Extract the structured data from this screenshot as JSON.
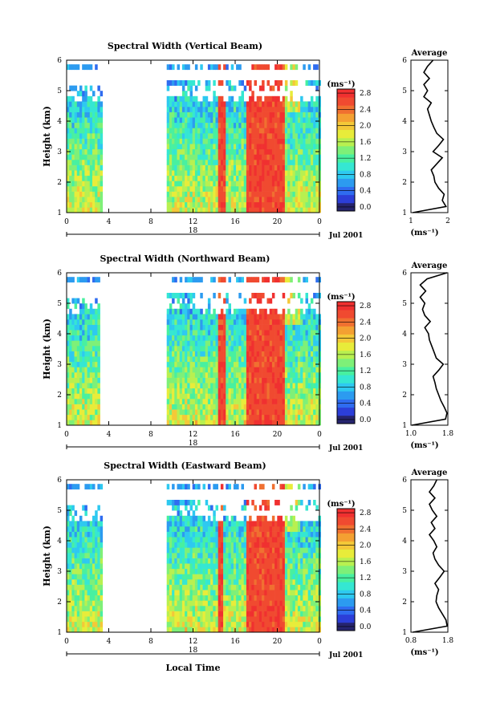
{
  "chart_data": [
    {
      "type": "heatmap",
      "title": "Spectral Width (Vertical Beam)",
      "xlabel": "",
      "ylabel": "Height (km)",
      "xlim": [
        0,
        24
      ],
      "ylim": [
        1,
        6
      ],
      "xticks": [
        "0",
        "4",
        "8",
        "12",
        "16",
        "20",
        "0"
      ],
      "yticks": [
        "1",
        "2",
        "3",
        "4",
        "5",
        "6"
      ],
      "date_tick": "18",
      "date_label": "Jul 2001",
      "colorbar_unit": "(ms⁻¹)",
      "colorbar_ticks": [
        "0.0",
        "0.4",
        "0.8",
        "1.2",
        "1.6",
        "2.0",
        "2.4",
        "2.8"
      ],
      "colorbar_range": [
        0,
        3.0
      ],
      "data_intervals_hours": [
        [
          0,
          3.2
        ],
        [
          9.5,
          24
        ]
      ],
      "high_width_bands_hours": [
        [
          14.2,
          15.0
        ],
        [
          17.0,
          20.5
        ]
      ],
      "average_profile": {
        "title": "Average",
        "xlabel": "(ms⁻¹)",
        "xticks": [
          "1",
          "2"
        ],
        "xlim": [
          1,
          2
        ],
        "yticks": [
          "1",
          "2",
          "3",
          "4",
          "5",
          "6"
        ],
        "heights": [
          1.0,
          1.2,
          1.4,
          1.6,
          1.8,
          2.0,
          2.2,
          2.4,
          2.6,
          2.8,
          3.0,
          3.2,
          3.4,
          3.6,
          3.8,
          4.0,
          4.2,
          4.4,
          4.6,
          4.8,
          5.0,
          5.2,
          5.4,
          5.6,
          5.8,
          6.0
        ],
        "values": [
          1.05,
          1.95,
          1.85,
          1.9,
          1.75,
          1.65,
          1.62,
          1.55,
          1.7,
          1.85,
          1.6,
          1.75,
          1.88,
          1.7,
          1.62,
          1.55,
          1.5,
          1.45,
          1.55,
          1.35,
          1.45,
          1.35,
          1.5,
          1.35,
          1.45,
          1.6
        ]
      }
    },
    {
      "type": "heatmap",
      "title": "Spectral Width (Northward Beam)",
      "xlabel": "",
      "ylabel": "Height (km)",
      "xlim": [
        0,
        24
      ],
      "ylim": [
        1,
        6
      ],
      "xticks": [
        "0",
        "4",
        "8",
        "12",
        "16",
        "20",
        "0"
      ],
      "yticks": [
        "1",
        "2",
        "3",
        "4",
        "5",
        "6"
      ],
      "date_tick": "18",
      "date_label": "Jul 2001",
      "colorbar_unit": "(ms⁻¹)",
      "colorbar_ticks": [
        "0.0",
        "0.4",
        "0.8",
        "1.2",
        "1.6",
        "2.0",
        "2.4",
        "2.8"
      ],
      "colorbar_range": [
        0,
        3.0
      ],
      "data_intervals_hours": [
        [
          0,
          3.0
        ],
        [
          9.5,
          24
        ]
      ],
      "high_width_bands_hours": [
        [
          14.3,
          14.9
        ],
        [
          17.0,
          20.5
        ]
      ],
      "average_profile": {
        "title": "Average",
        "xlabel": "(ms⁻¹)",
        "xticks": [
          "1.0",
          "1.8"
        ],
        "xlim": [
          1.0,
          1.8
        ],
        "yticks": [
          "1",
          "2",
          "3",
          "4",
          "5",
          "6"
        ],
        "heights": [
          1.0,
          1.2,
          1.4,
          1.6,
          1.8,
          2.0,
          2.2,
          2.4,
          2.6,
          2.8,
          3.0,
          3.2,
          3.4,
          3.6,
          3.8,
          4.0,
          4.2,
          4.4,
          4.6,
          4.8,
          5.0,
          5.2,
          5.4,
          5.6,
          5.8,
          6.0
        ],
        "values": [
          1.02,
          1.75,
          1.78,
          1.72,
          1.65,
          1.6,
          1.55,
          1.52,
          1.48,
          1.6,
          1.7,
          1.55,
          1.5,
          1.45,
          1.4,
          1.38,
          1.3,
          1.42,
          1.3,
          1.25,
          1.3,
          1.2,
          1.32,
          1.2,
          1.35,
          1.78
        ]
      }
    },
    {
      "type": "heatmap",
      "title": "Spectral Width (Eastward Beam)",
      "xlabel": "Local Time",
      "ylabel": "Height (km)",
      "xlim": [
        0,
        24
      ],
      "ylim": [
        1,
        6
      ],
      "xticks": [
        "0",
        "4",
        "8",
        "12",
        "16",
        "20",
        "0"
      ],
      "yticks": [
        "1",
        "2",
        "3",
        "4",
        "5",
        "6"
      ],
      "date_tick": "18",
      "date_label": "Jul 2001",
      "colorbar_unit": "(ms⁻¹)",
      "colorbar_ticks": [
        "0.0",
        "0.4",
        "0.8",
        "1.2",
        "1.6",
        "2.0",
        "2.4",
        "2.8"
      ],
      "colorbar_range": [
        0,
        3.0
      ],
      "data_intervals_hours": [
        [
          0,
          3.2
        ],
        [
          9.5,
          24
        ]
      ],
      "high_width_bands_hours": [
        [
          14.2,
          14.8
        ],
        [
          17.0,
          20.5
        ]
      ],
      "average_profile": {
        "title": "Average",
        "xlabel": "(ms⁻¹)",
        "xticks": [
          "0.8",
          "1.8"
        ],
        "xlim": [
          0.8,
          1.8
        ],
        "yticks": [
          "1",
          "2",
          "3",
          "4",
          "5",
          "6"
        ],
        "heights": [
          1.0,
          1.2,
          1.4,
          1.6,
          1.8,
          2.0,
          2.2,
          2.4,
          2.6,
          2.8,
          3.0,
          3.2,
          3.4,
          3.6,
          3.8,
          4.0,
          4.2,
          4.4,
          4.6,
          4.8,
          5.0,
          5.2,
          5.4,
          5.6,
          5.8,
          6.0
        ],
        "values": [
          0.85,
          1.78,
          1.75,
          1.65,
          1.55,
          1.48,
          1.5,
          1.55,
          1.45,
          1.58,
          1.7,
          1.55,
          1.45,
          1.4,
          1.5,
          1.42,
          1.3,
          1.45,
          1.35,
          1.5,
          1.38,
          1.3,
          1.45,
          1.3,
          1.42,
          1.5
        ]
      }
    }
  ]
}
